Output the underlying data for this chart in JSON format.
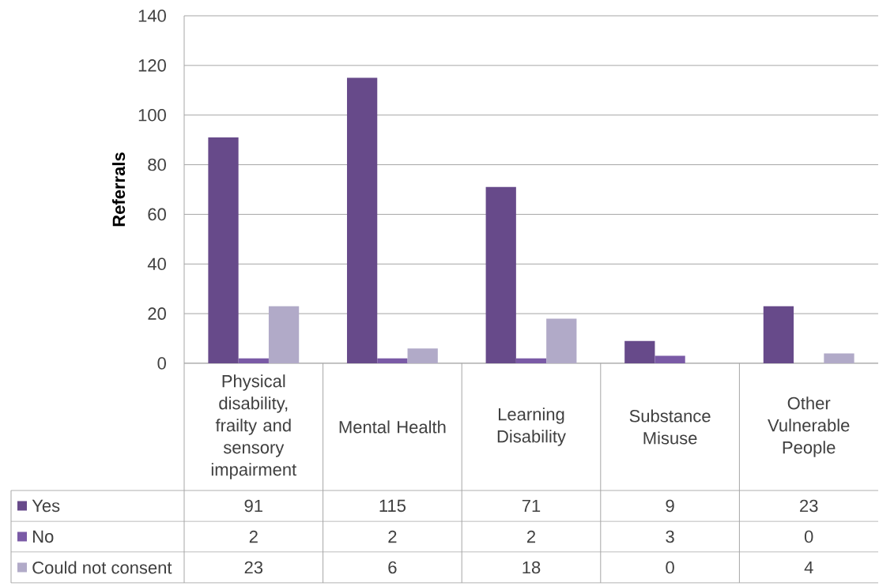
{
  "chart_data": {
    "type": "bar",
    "ylabel": "Referrals",
    "categories": [
      "Physical disability, frailty and sensory impairment",
      "Mental Health",
      "Learning Disability",
      "Substance Misuse",
      "Other Vulnerable People"
    ],
    "series": [
      {
        "name": "Yes",
        "color": "#674a8a",
        "values": [
          91,
          115,
          71,
          9,
          23
        ]
      },
      {
        "name": "No",
        "color": "#7a5aa6",
        "values": [
          2,
          2,
          2,
          3,
          0
        ]
      },
      {
        "name": "Could not consent",
        "color": "#b1aac8",
        "values": [
          23,
          6,
          18,
          0,
          4
        ]
      }
    ],
    "ylim": [
      0,
      140
    ],
    "yticks": [
      0,
      20,
      40,
      60,
      80,
      100,
      120,
      140
    ],
    "grid": "y",
    "legend": "bottom",
    "data_labels": true
  }
}
